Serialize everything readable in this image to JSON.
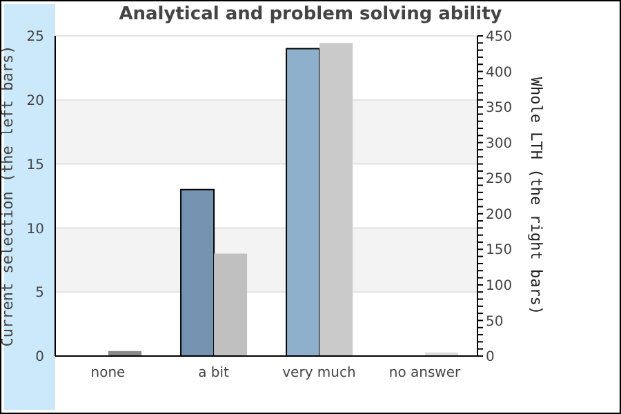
{
  "chart_data": {
    "type": "bar",
    "title": "Analytical and problem solving ability",
    "ylabel": "Current selection (the left bars)",
    "y2label": "Whole LTH (the right bars)",
    "categories": [
      "none",
      "a bit",
      "very much",
      "no answer"
    ],
    "series": [
      {
        "colors": [
          "#7393b0",
          "#7393b0",
          "#8fb0cc",
          "#8fb0cc"
        ],
        "values": [
          0,
          13,
          24,
          0
        ]
      },
      {
        "axis": "y2",
        "colors": [
          "#888888",
          "#c0c0c0",
          "#cacaca",
          "#dddddd"
        ],
        "values": [
          7,
          144,
          440,
          5
        ]
      }
    ],
    "ylim": [
      0,
      25
    ],
    "yticks": [
      0,
      5,
      10,
      15,
      20,
      25
    ],
    "y2lim": [
      0,
      450
    ],
    "y2ticks": [
      0,
      {
        "value": 10,
        "label": null
      },
      {
        "value": 20,
        "label": null
      },
      {
        "value": 30,
        "label": null
      },
      {
        "value": 40,
        "label": null
      },
      50,
      {
        "value": 60,
        "label": null
      },
      {
        "value": 70,
        "label": null
      },
      {
        "value": 80,
        "label": null
      },
      {
        "value": 90,
        "label": null
      },
      100,
      {
        "value": 110,
        "label": null
      },
      {
        "value": 120,
        "label": null
      },
      {
        "value": 130,
        "label": null
      },
      {
        "value": 140,
        "label": null
      },
      150,
      {
        "value": 160,
        "label": null
      },
      {
        "value": 170,
        "label": null
      },
      {
        "value": 180,
        "label": null
      },
      {
        "value": 190,
        "label": null
      },
      200,
      {
        "value": 210,
        "label": null
      },
      {
        "value": 220,
        "label": null
      },
      {
        "value": 230,
        "label": null
      },
      {
        "value": 240,
        "label": null
      },
      250,
      {
        "value": 260,
        "label": null
      },
      {
        "value": 270,
        "label": null
      },
      {
        "value": 280,
        "label": null
      },
      {
        "value": 290,
        "label": null
      },
      300,
      {
        "value": 310,
        "label": null
      },
      {
        "value": 320,
        "label": null
      },
      {
        "value": 330,
        "label": null
      },
      {
        "value": 340,
        "label": null
      },
      350,
      {
        "value": 360,
        "label": null
      },
      {
        "value": 370,
        "label": null
      },
      {
        "value": 380,
        "label": null
      },
      {
        "value": 390,
        "label": null
      },
      400,
      {
        "value": 410,
        "label": null
      },
      {
        "value": 420,
        "label": null
      },
      {
        "value": 430,
        "label": null
      },
      {
        "value": 440,
        "label": null
      },
      450
    ],
    "grid": "y",
    "legend": false
  }
}
